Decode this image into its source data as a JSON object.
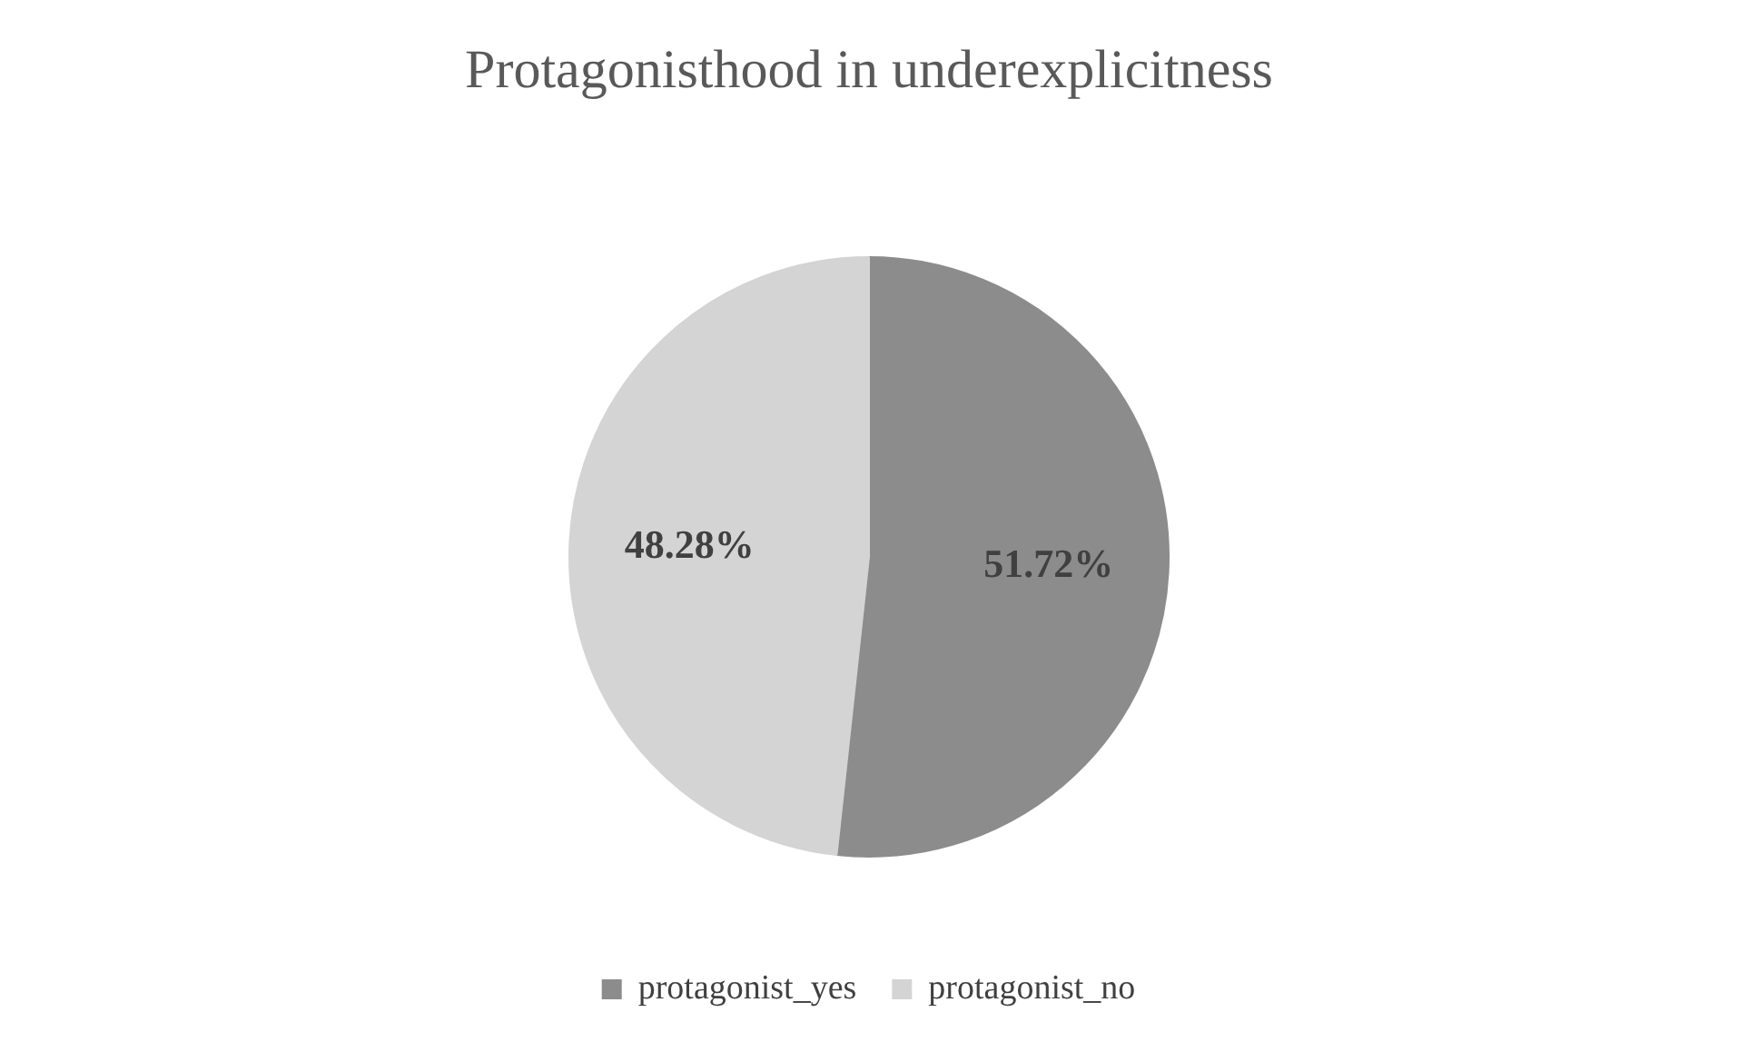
{
  "chart_data": {
    "type": "pie",
    "title": "Protagonisthood in underexplicitness",
    "categories": [
      "protagonist_yes",
      "protagonist_no"
    ],
    "values": [
      51.72,
      48.28
    ],
    "value_labels": [
      "51.72%",
      "48.28%"
    ],
    "colors": [
      "#8c8c8c",
      "#d4d4d4"
    ],
    "legend": "bottom"
  }
}
